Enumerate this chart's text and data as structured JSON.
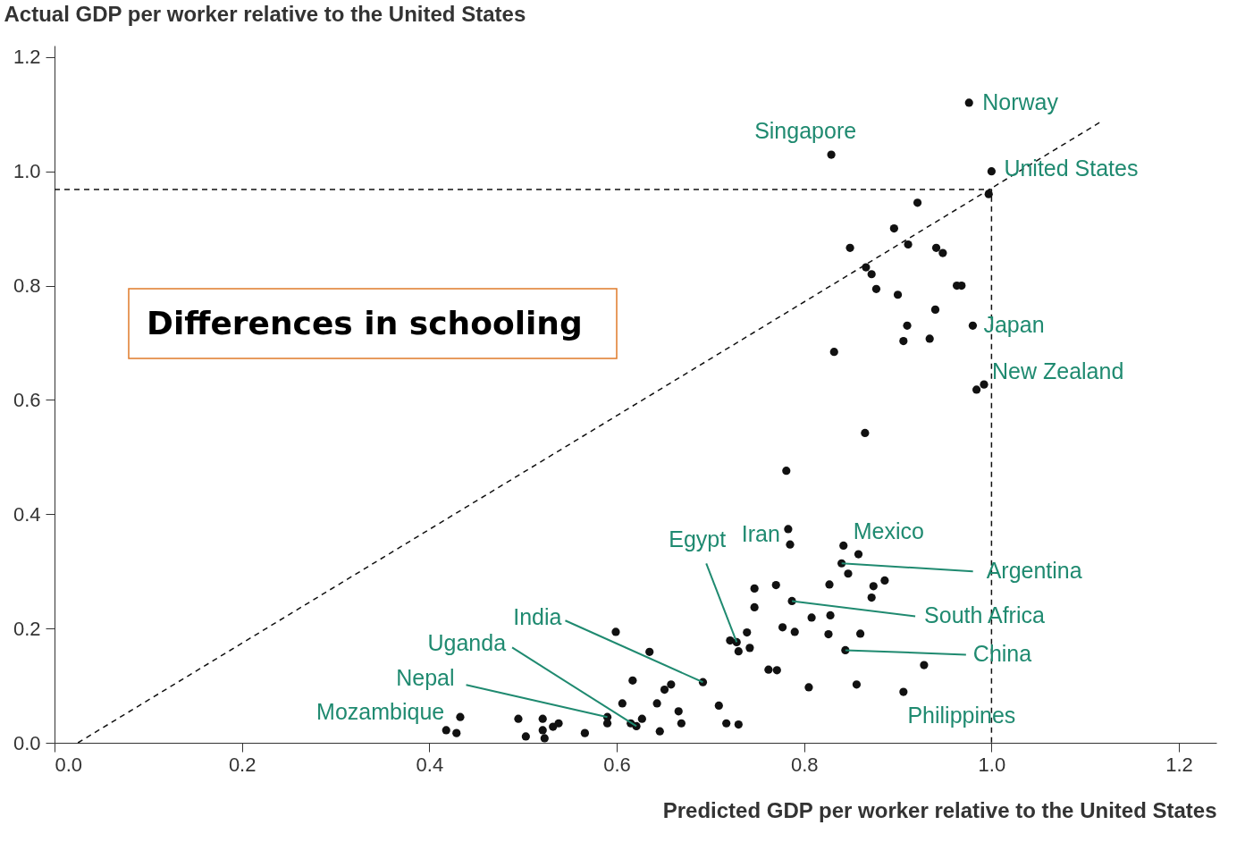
{
  "chart_data": {
    "type": "scatter",
    "xlabel": "Predicted GDP per worker relative to the United States",
    "ylabel": "Actual GDP per worker relative to the United States",
    "xlim": [
      0,
      1.24
    ],
    "ylim": [
      0,
      1.22
    ],
    "xticks": [
      {
        "value": 0,
        "label": "0.0"
      },
      0.2,
      0.4,
      0.6,
      0.8,
      {
        "value": 1,
        "label": "1.0"
      },
      1.2
    ],
    "yticks": [
      {
        "value": 0,
        "label": "0.0"
      },
      0.2,
      0.4,
      0.6,
      0.8,
      {
        "value": 1,
        "label": "1.0"
      },
      1.2
    ],
    "series": [
      {
        "type": "scatter",
        "color": "#111111",
        "marker": "circle",
        "x": [
          0.976,
          0.829,
          1.0,
          0.997,
          0.921,
          0.896,
          0.849,
          0.911,
          0.941,
          0.948,
          0.866,
          0.872,
          0.877,
          0.9,
          0.963,
          0.968,
          0.94,
          0.91,
          0.98,
          0.906,
          0.934,
          0.832,
          0.984,
          0.992,
          0.865,
          0.781,
          0.783,
          0.785,
          0.842,
          0.858,
          0.84,
          0.847,
          0.747,
          0.77,
          0.827,
          0.874,
          0.886,
          0.872,
          0.747,
          0.787,
          0.808,
          0.828,
          0.777,
          0.79,
          0.826,
          0.86,
          0.739,
          0.721,
          0.728,
          0.73,
          0.742,
          0.844,
          0.928,
          0.762,
          0.771,
          0.692,
          0.805,
          0.856,
          0.906,
          0.658,
          0.651,
          0.643,
          0.666,
          0.709,
          0.635,
          0.717,
          0.73,
          0.669,
          0.599,
          0.617,
          0.606,
          0.433,
          0.418,
          0.429,
          0.495,
          0.503,
          0.521,
          0.521,
          0.523,
          0.532,
          0.538,
          0.566,
          0.59,
          0.59,
          0.615,
          0.621,
          0.627,
          0.646
        ],
        "values": [
          1.12,
          1.029,
          1.0,
          0.96,
          0.945,
          0.9,
          0.866,
          0.872,
          0.866,
          0.857,
          0.832,
          0.82,
          0.794,
          0.784,
          0.8,
          0.8,
          0.758,
          0.73,
          0.73,
          0.703,
          0.707,
          0.684,
          0.618,
          0.627,
          0.542,
          0.476,
          0.374,
          0.347,
          0.345,
          0.33,
          0.314,
          0.296,
          0.27,
          0.276,
          0.277,
          0.274,
          0.284,
          0.254,
          0.237,
          0.248,
          0.219,
          0.223,
          0.202,
          0.194,
          0.19,
          0.191,
          0.193,
          0.179,
          0.176,
          0.16,
          0.166,
          0.162,
          0.136,
          0.128,
          0.127,
          0.106,
          0.097,
          0.102,
          0.089,
          0.102,
          0.093,
          0.069,
          0.055,
          0.065,
          0.159,
          0.034,
          0.032,
          0.034,
          0.194,
          0.109,
          0.069,
          0.045,
          0.022,
          0.017,
          0.042,
          0.011,
          0.042,
          0.022,
          0.008,
          0.028,
          0.034,
          0.017,
          0.045,
          0.034,
          0.034,
          0.029,
          0.042,
          0.02
        ]
      },
      {
        "type": "line",
        "color": "#111111",
        "line_style": "dashed",
        "x": [
          0.025,
          1.118
        ],
        "values": [
          0,
          1.088
        ]
      },
      {
        "type": "line",
        "color": "#111111",
        "line_style": "dashed",
        "x": [
          0,
          1.0,
          1.0
        ],
        "values": [
          0.968,
          0.968,
          0
        ]
      }
    ],
    "annotations": [
      {
        "text": "Norway",
        "x": 0.976,
        "y": 1.12
      },
      {
        "text": "Singapore",
        "x": 0.829,
        "y": 1.029
      },
      {
        "text": "United States",
        "x": 1.0,
        "y": 1.0
      },
      {
        "text": "Japan",
        "x": 0.98,
        "y": 0.73
      },
      {
        "text": "New Zealand",
        "x": 0.992,
        "y": 0.627
      },
      {
        "text": "Iran",
        "x": 0.783,
        "y": 0.374
      },
      {
        "text": "Mexico",
        "x": 0.842,
        "y": 0.345
      },
      {
        "text": "Egypt",
        "x": 0.728,
        "y": 0.176
      },
      {
        "text": "Argentina",
        "x": 0.84,
        "y": 0.314
      },
      {
        "text": "South Africa",
        "x": 0.787,
        "y": 0.248
      },
      {
        "text": "China",
        "x": 0.844,
        "y": 0.162
      },
      {
        "text": "Philippines",
        "x": 0.906,
        "y": 0.089
      },
      {
        "text": "India",
        "x": 0.692,
        "y": 0.106
      },
      {
        "text": "Uganda",
        "x": 0.621,
        "y": 0.029
      },
      {
        "text": "Nepal",
        "x": 0.59,
        "y": 0.045
      },
      {
        "text": "Mozambique",
        "x": 0.418,
        "y": 0.022
      },
      "Differences in schooling"
    ]
  }
}
